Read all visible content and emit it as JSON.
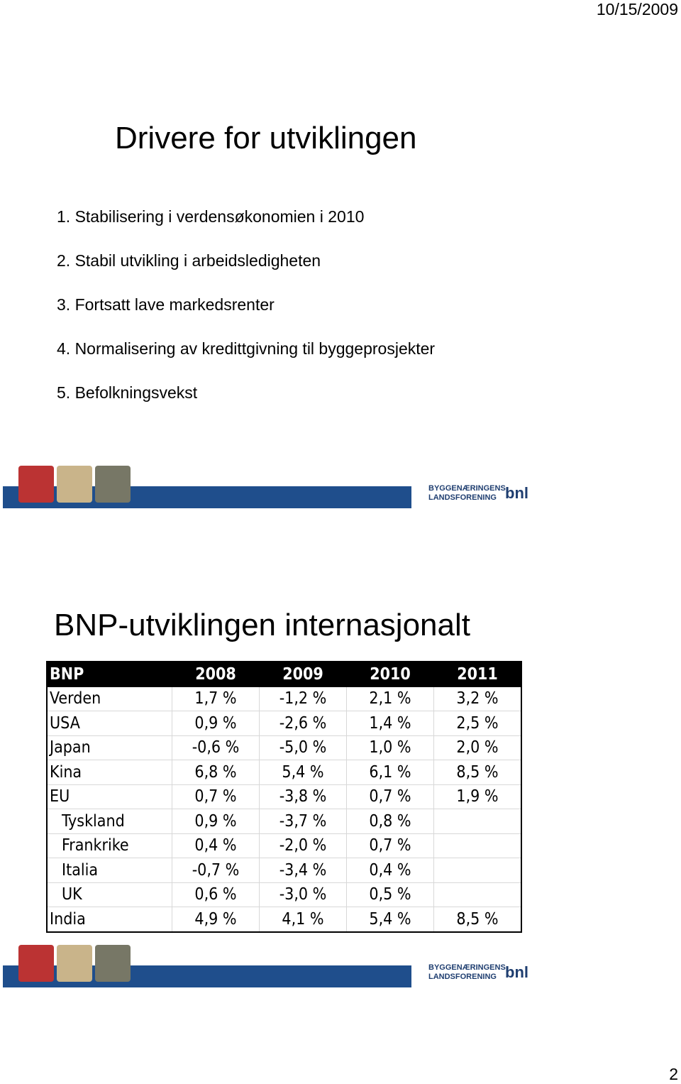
{
  "header": {
    "date": "10/15/2009"
  },
  "slide1": {
    "title": "Drivere for utviklingen",
    "items": [
      "1. Stabilisering i verdensøkonomien i 2010",
      "2. Stabil utvikling i arbeidsledigheten",
      "3. Fortsatt lave markedsrenter",
      "4. Normalisering av kredittgivning til byggeprosjekter",
      "5. Befolkningsvekst"
    ]
  },
  "banner": {
    "org_line1": "BYGGENÆRINGENS",
    "org_line2": "LANDSFORENING",
    "logo": "bnl"
  },
  "slide2": {
    "title": "BNP-utviklingen internasjonalt",
    "table": {
      "header": [
        "BNP",
        "2008",
        "2009",
        "2010",
        "2011"
      ],
      "rows": [
        [
          "Verden",
          "1,7 %",
          "-1,2 %",
          "2,1 %",
          "3,2 %"
        ],
        [
          "USA",
          "0,9 %",
          "-2,6 %",
          "1,4 %",
          "2,5 %"
        ],
        [
          "Japan",
          "-0,6 %",
          "-5,0 %",
          "1,0 %",
          "2,0 %"
        ],
        [
          "Kina",
          "6,8 %",
          "5,4 %",
          "6,1 %",
          "8,5 %"
        ],
        [
          "EU",
          "0,7 %",
          "-3,8 %",
          "0,7 %",
          "1,9 %"
        ],
        [
          "Tyskland",
          "0,9 %",
          "-3,7 %",
          "0,8 %",
          null
        ],
        [
          "Frankrike",
          "0,4 %",
          "-2,0 %",
          "0,7 %",
          null
        ],
        [
          "Italia",
          "-0,7 %",
          "-3,4 %",
          "0,4 %",
          null
        ],
        [
          "UK",
          "0,6 %",
          "-3,0 %",
          "0,5 %",
          null
        ],
        [
          "India",
          "4,9 %",
          "4,1 %",
          "5,4 %",
          "8,5 %"
        ]
      ]
    }
  },
  "footer": {
    "page": "2"
  }
}
